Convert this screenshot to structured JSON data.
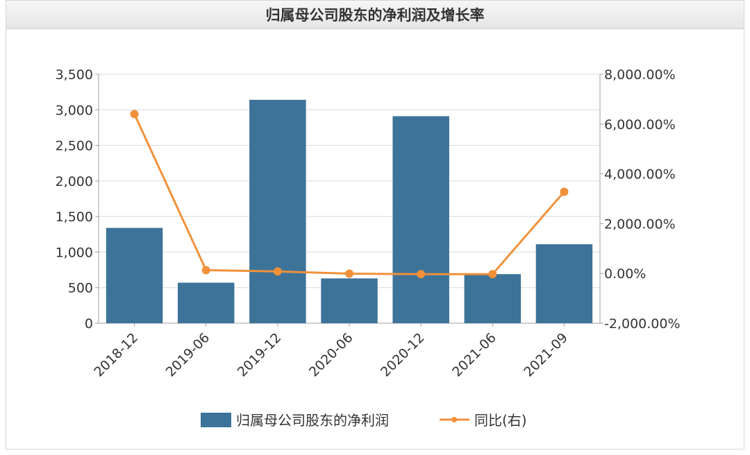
{
  "chart_data": {
    "type": "bar",
    "title": "归属母公司股东的净利润及增长率",
    "categories": [
      "2018-12",
      "2019-06",
      "2019-12",
      "2020-06",
      "2020-12",
      "2021-06",
      "2021-09"
    ],
    "series": [
      {
        "name": "归属母公司股东的净利润",
        "type": "bar",
        "axis": "left",
        "color": "#3d7399",
        "values": [
          1340,
          570,
          3140,
          630,
          2910,
          690,
          1110
        ]
      },
      {
        "name": "同比(右)",
        "type": "line",
        "axis": "right",
        "color": "#f0913a",
        "values": [
          6400,
          130,
          80,
          -10,
          -30,
          -30,
          3280
        ]
      }
    ],
    "left_axis": {
      "ylim": [
        0,
        3500
      ],
      "ticks": [
        0,
        500,
        1000,
        1500,
        2000,
        2500,
        3000,
        3500
      ],
      "tick_labels": [
        "0",
        "500",
        "1,000",
        "1,500",
        "2,000",
        "2,500",
        "3,000",
        "3,500"
      ]
    },
    "right_axis": {
      "ylim": [
        -2000,
        8000
      ],
      "ticks": [
        -2000,
        0,
        2000,
        4000,
        6000,
        8000
      ],
      "tick_labels": [
        "-2,000.00%",
        "0.00%",
        "2,000.00%",
        "4,000.00%",
        "6,000.00%",
        "8,000.00%"
      ]
    },
    "grid": true,
    "legend_position": "bottom"
  }
}
